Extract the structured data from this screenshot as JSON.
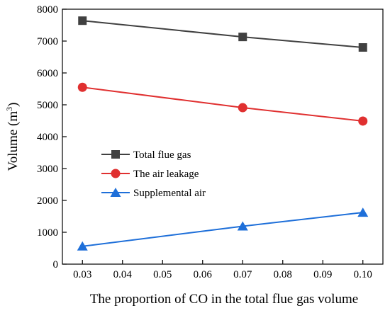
{
  "chart_data": {
    "type": "line",
    "title": "",
    "xlabel": "The proportion of CO in the total flue gas volume",
    "ylabel": "Volume (m",
    "ylabel_superscript": "3",
    "ylabel_suffix": ")",
    "xlim": [
      0.025,
      0.105
    ],
    "ylim": [
      0,
      8000
    ],
    "x_ticks": [
      "0.03",
      "0.04",
      "0.05",
      "0.06",
      "0.07",
      "0.08",
      "0.09",
      "0.10"
    ],
    "x_tick_values": [
      0.03,
      0.04,
      0.05,
      0.06,
      0.07,
      0.08,
      0.09,
      0.1
    ],
    "y_ticks": [
      "0",
      "1000",
      "2000",
      "3000",
      "4000",
      "5000",
      "6000",
      "7000",
      "8000"
    ],
    "y_tick_values": [
      0,
      1000,
      2000,
      3000,
      4000,
      5000,
      6000,
      7000,
      8000
    ],
    "grid": false,
    "legend_position": "left-middle",
    "x": [
      0.03,
      0.07,
      0.1
    ],
    "series": [
      {
        "name": "Total flue gas",
        "values": [
          7640,
          7130,
          6800
        ],
        "color": "#404040",
        "marker": "square"
      },
      {
        "name": "The air leakage",
        "values": [
          5550,
          4910,
          4490
        ],
        "color": "#e03030",
        "marker": "circle"
      },
      {
        "name": "Supplemental air",
        "values": [
          560,
          1190,
          1620
        ],
        "color": "#1e6fd9",
        "marker": "triangle"
      }
    ]
  }
}
